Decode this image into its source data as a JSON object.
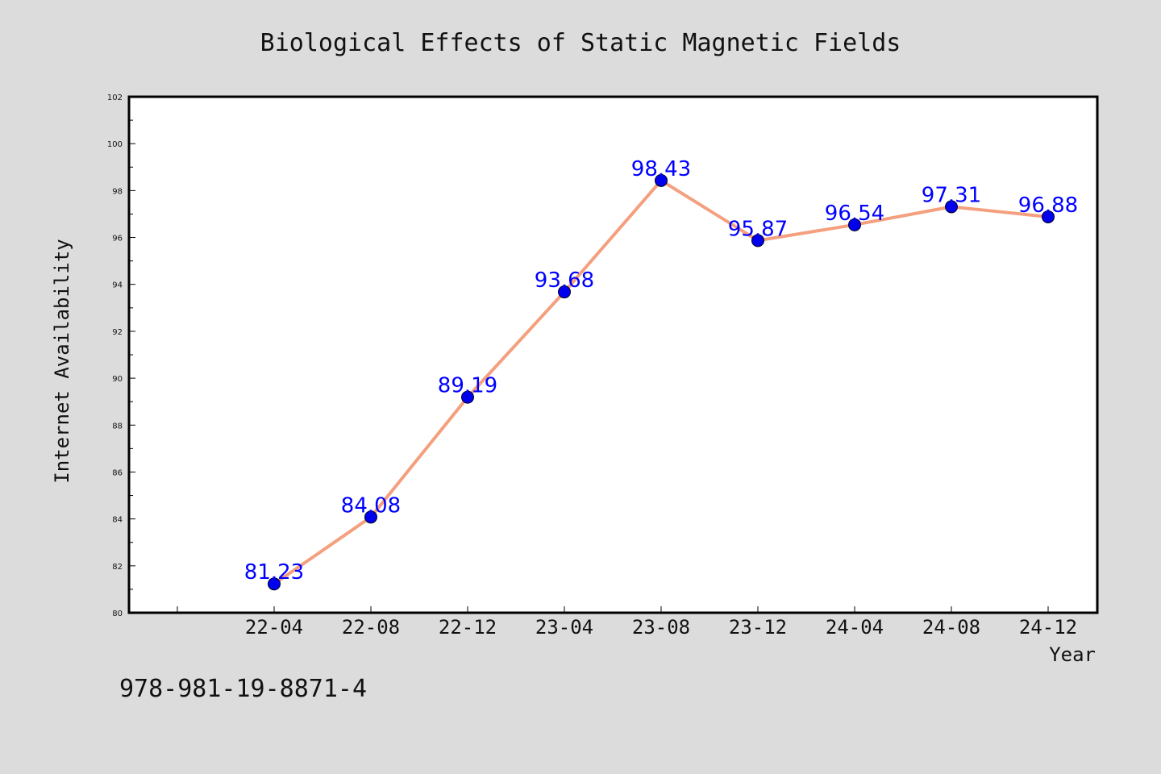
{
  "chart_data": {
    "type": "line",
    "title": "Biological Effects of Static Magnetic Fields",
    "xlabel": "Year",
    "ylabel": "Internet Availability",
    "categories": [
      "22-04",
      "22-08",
      "22-12",
      "23-04",
      "23-08",
      "23-12",
      "24-04",
      "24-08",
      "24-12"
    ],
    "values": [
      81.23,
      84.08,
      89.19,
      93.68,
      98.43,
      95.87,
      96.54,
      97.31,
      96.88
    ],
    "data_labels": [
      "81.23",
      "84.08",
      "89.19",
      "93.68",
      "98.43",
      "95.87",
      "96.54",
      "97.31",
      "96.88"
    ],
    "ylim": [
      80,
      102
    ],
    "yticks": [
      80,
      82,
      84,
      86,
      88,
      90,
      92,
      94,
      96,
      98,
      100,
      102
    ],
    "grid": false,
    "colors": {
      "line": "#f4a07e",
      "marker": "#0000ee",
      "label": "#0000ff"
    }
  },
  "footnote": "978-981-19-8871-4"
}
